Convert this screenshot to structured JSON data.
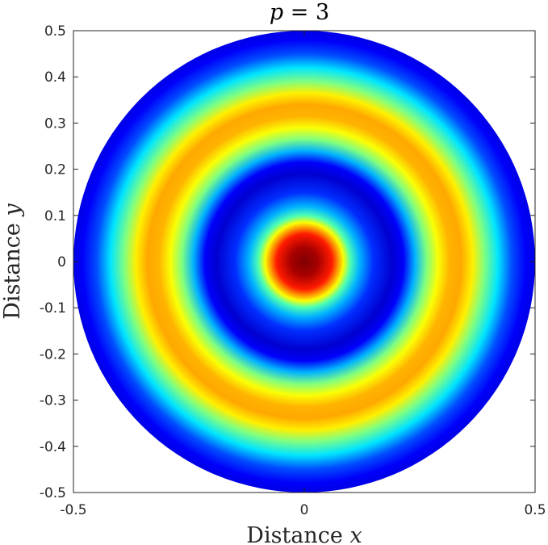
{
  "chart_data": {
    "type": "heatmap",
    "title_text": "p = 3",
    "title_var": "p",
    "title_eq": " = ",
    "title_val": "3",
    "xlabel_text": "Distance ",
    "xlabel_var": "x",
    "ylabel_text": "Distance ",
    "ylabel_var": "y",
    "xlim": [
      -0.5,
      0.5
    ],
    "ylim": [
      -0.5,
      0.5
    ],
    "xticks": [
      -0.5,
      0,
      0.5
    ],
    "xtick_labels": [
      "-0.5",
      "0",
      "0.5"
    ],
    "yticks": [
      0.5,
      0.4,
      0.3,
      0.2,
      0.1,
      0,
      -0.1,
      -0.2,
      -0.3,
      -0.4,
      -0.5
    ],
    "ytick_labels": [
      "0.5",
      "0.4",
      "0.3",
      "0.2",
      "0.1",
      "0",
      "-0.1",
      "-0.2",
      "-0.3",
      "-0.4",
      "-0.5"
    ],
    "domain": "disk",
    "domain_radius": 0.5,
    "colormap": "jet",
    "grid": false,
    "radial_profile": [
      {
        "r": 0.0,
        "v": 1.0
      },
      {
        "r": 0.03,
        "v": 0.96
      },
      {
        "r": 0.06,
        "v": 0.85
      },
      {
        "r": 0.085,
        "v": 0.62
      },
      {
        "r": 0.1,
        "v": 0.45
      },
      {
        "r": 0.12,
        "v": 0.3
      },
      {
        "r": 0.15,
        "v": 0.17
      },
      {
        "r": 0.19,
        "v": 0.08
      },
      {
        "r": 0.215,
        "v": 0.12
      },
      {
        "r": 0.24,
        "v": 0.3
      },
      {
        "r": 0.265,
        "v": 0.5
      },
      {
        "r": 0.29,
        "v": 0.62
      },
      {
        "r": 0.315,
        "v": 0.7
      },
      {
        "r": 0.34,
        "v": 0.71
      },
      {
        "r": 0.365,
        "v": 0.64
      },
      {
        "r": 0.39,
        "v": 0.5
      },
      {
        "r": 0.42,
        "v": 0.35
      },
      {
        "r": 0.45,
        "v": 0.2
      },
      {
        "r": 0.48,
        "v": 0.12
      },
      {
        "r": 0.5,
        "v": 0.1
      }
    ]
  }
}
